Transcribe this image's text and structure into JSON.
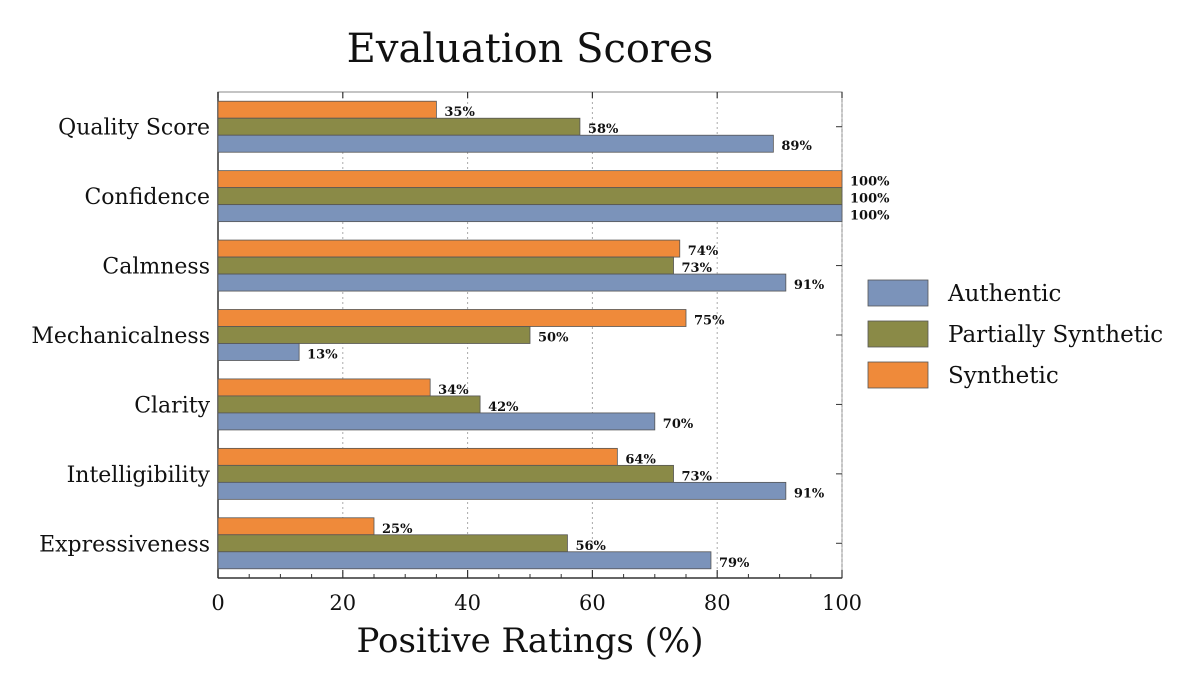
{
  "chart_data": {
    "type": "bar",
    "orientation": "horizontal",
    "title": "Evaluation Scores",
    "xlabel": "Positive Ratings (%)",
    "ylabel": "",
    "xlim": [
      0,
      100
    ],
    "xticks": [
      0,
      20,
      40,
      60,
      80,
      100
    ],
    "grid": "vertical dotted",
    "legend_position": "right",
    "categories": [
      "Quality Score",
      "Confidence",
      "Calmness",
      "Mechanicalness",
      "Clarity",
      "Intelligibility",
      "Expressiveness"
    ],
    "series": [
      {
        "name": "Authentic",
        "color": "#7b93ba",
        "values": [
          89,
          100,
          91,
          13,
          70,
          91,
          79
        ],
        "labels": [
          "89%",
          "100%",
          "91%",
          "13%",
          "70%",
          "91%",
          "79%"
        ]
      },
      {
        "name": "Partially Synthetic",
        "color": "#8a8a47",
        "values": [
          58,
          100,
          73,
          50,
          42,
          73,
          56
        ],
        "labels": [
          "58%",
          "100%",
          "73%",
          "50%",
          "42%",
          "73%",
          "56%"
        ]
      },
      {
        "name": "Synthetic",
        "color": "#ef8a3a",
        "values": [
          35,
          100,
          74,
          75,
          34,
          64,
          25
        ],
        "labels": [
          "35%",
          "100%",
          "74%",
          "75%",
          "34%",
          "64%",
          "25%"
        ]
      }
    ]
  }
}
